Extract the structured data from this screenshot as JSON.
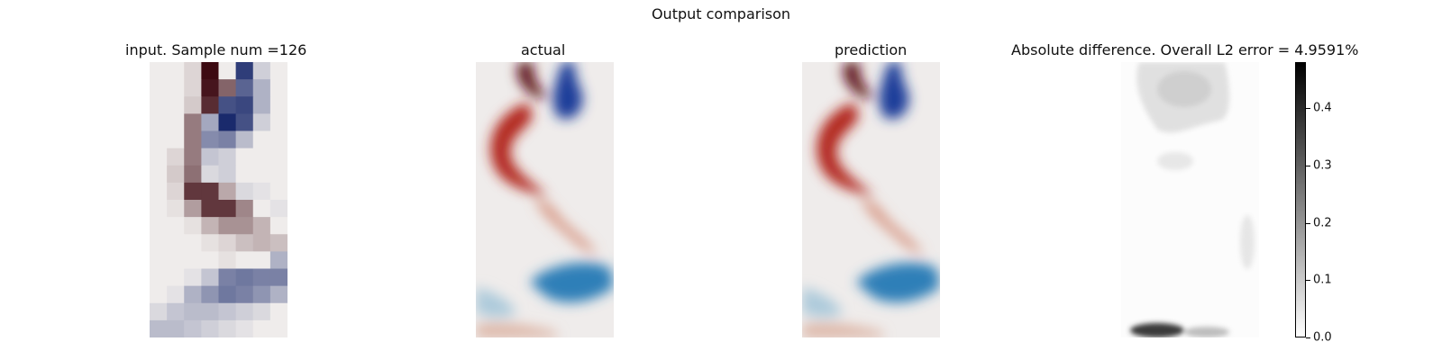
{
  "figure": {
    "title": "Output comparison"
  },
  "panels": {
    "input": {
      "title": "input. Sample num =126"
    },
    "actual": {
      "title": "actual"
    },
    "prediction": {
      "title": "prediction"
    },
    "difference": {
      "title": "Absolute difference. Overall L2 error = 4.9591%"
    }
  },
  "chart_data": {
    "type": "heatmap",
    "colormap_diverging": {
      "negative": "#1a2a6c",
      "zero": "#efeceb",
      "positive": "#3d0a12"
    },
    "input_grid": {
      "rows": 16,
      "cols": 8,
      "values": [
        [
          0,
          0,
          0.1,
          1.0,
          0,
          -0.9,
          -0.15,
          0
        ],
        [
          0,
          0,
          0.1,
          0.95,
          0.6,
          -0.7,
          -0.3,
          0
        ],
        [
          0,
          0,
          0.15,
          0.85,
          -0.8,
          -0.85,
          -0.3,
          0
        ],
        [
          0,
          0,
          0.5,
          -0.35,
          -1.0,
          -0.8,
          -0.15,
          0
        ],
        [
          0,
          0,
          0.5,
          -0.5,
          -0.55,
          -0.25,
          0,
          0
        ],
        [
          0,
          0.1,
          0.5,
          -0.2,
          -0.15,
          0,
          0,
          0
        ],
        [
          0,
          0.15,
          0.55,
          -0.1,
          -0.15,
          0,
          0,
          0
        ],
        [
          0,
          0.1,
          0.8,
          0.8,
          0.3,
          -0.1,
          -0.05,
          0
        ],
        [
          0,
          0.05,
          0.35,
          0.8,
          0.8,
          0.45,
          0,
          -0.05
        ],
        [
          0,
          0,
          0.05,
          0.25,
          0.4,
          0.4,
          0.25,
          0
        ],
        [
          0,
          0,
          0,
          0.05,
          0.1,
          0.2,
          0.25,
          0.2
        ],
        [
          0,
          0,
          0,
          0,
          0.05,
          0,
          0,
          -0.3
        ],
        [
          0,
          0,
          -0.05,
          -0.2,
          -0.55,
          -0.6,
          -0.55,
          -0.55
        ],
        [
          0,
          -0.05,
          -0.3,
          -0.45,
          -0.6,
          -0.55,
          -0.45,
          -0.3
        ],
        [
          -0.1,
          -0.2,
          -0.25,
          -0.25,
          -0.2,
          -0.15,
          -0.1,
          0
        ],
        [
          -0.25,
          -0.25,
          -0.2,
          -0.15,
          -0.1,
          -0.05,
          0,
          0
        ]
      ]
    },
    "colorbar": {
      "min": 0.0,
      "max": 0.48,
      "ticks": [
        0.0,
        0.1,
        0.2,
        0.3,
        0.4
      ]
    }
  }
}
